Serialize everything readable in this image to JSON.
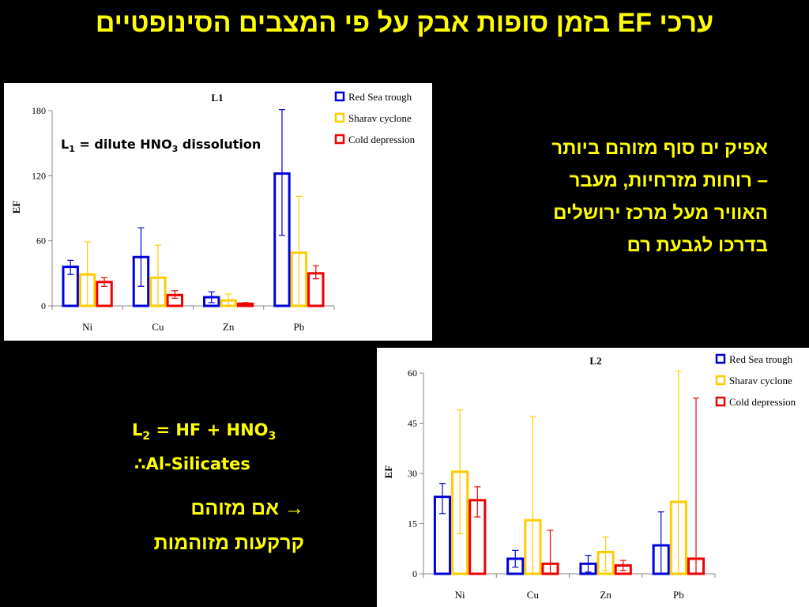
{
  "slide": {
    "title": "ערכי EF בזמן סופות אבק על פי המצבים הסינופטיים",
    "right_text": [
      "אפיק ים סוף מזוהם ביותר",
      "– רוחות מזרחיות, מעבר",
      "האוויר מעל מרכז ירושלים",
      "בדרכו לגבעת רם"
    ],
    "l1_note": {
      "prefix": "L",
      "sub": "1",
      "mid": " = dilute HNO",
      "sub2": "3",
      "suffix": " dissolution"
    },
    "l2_note": {
      "prefix": "L",
      "sub": "2",
      "mid": " = HF + HNO",
      "sub2": "3"
    },
    "therefore_text": "∴Al-Silicates",
    "arrow_text": "→ אם מזוהם",
    "soils_text": "קרקעות מזוהמות"
  },
  "colors": {
    "Red Sea trough": "#0000dd",
    "Sharav cyclone": "#ffcc00",
    "Cold depression": "#ee0000"
  },
  "chart_data": [
    {
      "type": "bar",
      "title": "L1",
      "ylabel": "EF",
      "xlabel": "",
      "categories": [
        "Ni",
        "Cu",
        "Zn",
        "Pb"
      ],
      "ylim": [
        0,
        180
      ],
      "yticks": [
        0,
        60,
        120,
        180
      ],
      "legend_position": "top-right",
      "series": [
        {
          "name": "Red Sea trough",
          "values": [
            36,
            45,
            8,
            122
          ],
          "err_high": [
            42,
            72,
            13,
            181
          ],
          "err_low": [
            29,
            18,
            3,
            65
          ]
        },
        {
          "name": "Sharav cyclone",
          "values": [
            29,
            26,
            5,
            49
          ],
          "err_high": [
            59,
            56,
            11,
            101
          ],
          "err_low": [
            0,
            0,
            0,
            0
          ]
        },
        {
          "name": "Cold depression",
          "values": [
            22,
            10,
            2,
            30
          ],
          "err_high": [
            26,
            14,
            3,
            37
          ],
          "err_low": [
            18,
            7,
            1,
            25
          ]
        }
      ]
    },
    {
      "type": "bar",
      "title": "L2",
      "ylabel": "EF",
      "xlabel": "",
      "categories": [
        "Ni",
        "Cu",
        "Zn",
        "Pb"
      ],
      "ylim": [
        0,
        60
      ],
      "yticks": [
        0,
        15,
        30,
        45,
        60
      ],
      "legend_position": "top-right",
      "series": [
        {
          "name": "Red Sea trough",
          "values": [
            23,
            4.5,
            3,
            8.5
          ],
          "err_high": [
            27,
            7,
            5.5,
            18.5
          ],
          "err_low": [
            18,
            2,
            0.5,
            0
          ]
        },
        {
          "name": "Sharav cyclone",
          "values": [
            30.5,
            16,
            6.5,
            21.5
          ],
          "err_high": [
            49,
            47,
            11,
            61
          ],
          "err_low": [
            12,
            0,
            1,
            0
          ]
        },
        {
          "name": "Cold depression",
          "values": [
            22,
            3,
            2.5,
            4.5
          ],
          "err_high": [
            26,
            13,
            4,
            52.5
          ],
          "err_low": [
            17,
            0,
            1,
            0
          ]
        }
      ]
    }
  ]
}
